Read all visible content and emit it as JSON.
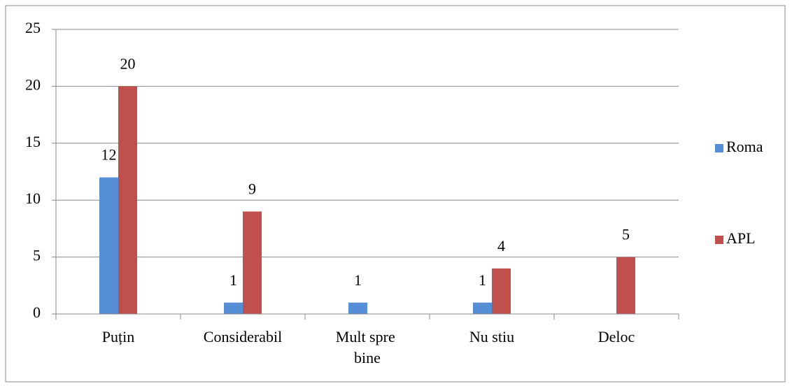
{
  "chart_data": {
    "type": "bar",
    "categories": [
      "Puțin",
      "Considerabil",
      "Mult spre bine",
      "Nu stiu",
      "Deloc"
    ],
    "series": [
      {
        "name": "Roma",
        "color": "#558ed5",
        "values": [
          12,
          1,
          1,
          1,
          null
        ]
      },
      {
        "name": "APL",
        "color": "#c0504d",
        "values": [
          20,
          9,
          null,
          4,
          5
        ]
      }
    ],
    "ylim": [
      0,
      25
    ],
    "yticks": [
      0,
      5,
      10,
      15,
      20,
      25
    ],
    "grid": true,
    "legend": "right"
  }
}
